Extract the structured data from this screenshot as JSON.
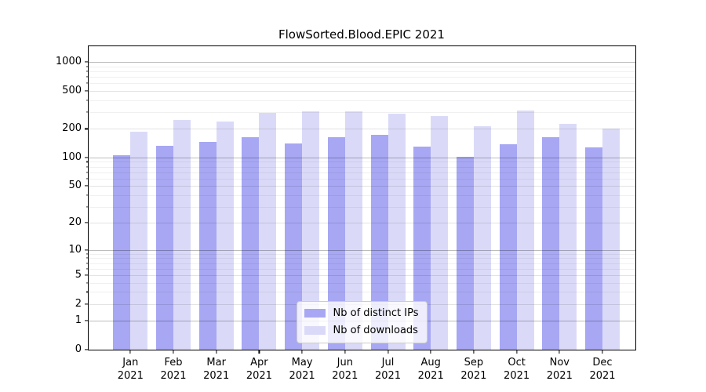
{
  "chart_data": {
    "type": "bar",
    "title": "FlowSorted.Blood.EPIC 2021",
    "xlabel": "",
    "ylabel": "",
    "year_label": "2021",
    "months": [
      "Jan",
      "Feb",
      "Mar",
      "Apr",
      "May",
      "Jun",
      "Jul",
      "Aug",
      "Sep",
      "Oct",
      "Nov",
      "Dec"
    ],
    "categories": [
      "Jan 2021",
      "Feb 2021",
      "Mar 2021",
      "Apr 2021",
      "May 2021",
      "Jun 2021",
      "Jul 2021",
      "Aug 2021",
      "Sep 2021",
      "Oct 2021",
      "Nov 2021",
      "Dec 2021"
    ],
    "series": [
      {
        "name": "Nb of distinct IPs",
        "color": "#a7a7f3",
        "values": [
          106,
          133,
          146,
          164,
          140,
          164,
          173,
          130,
          101,
          139,
          163,
          128
        ]
      },
      {
        "name": "Nb of downloads",
        "color": "#dadaf8",
        "values": [
          187,
          249,
          238,
          294,
          305,
          303,
          288,
          272,
          215,
          310,
          226,
          201
        ]
      }
    ],
    "y_scale": "log10(1+x)",
    "y_ticks": [
      0,
      1,
      2,
      5,
      10,
      20,
      50,
      100,
      200,
      500,
      1000
    ],
    "y_decade_ticks": [
      1,
      10,
      100,
      1000
    ],
    "y_minor_ticks": [
      3,
      4,
      6,
      7,
      8,
      9,
      30,
      40,
      60,
      70,
      80,
      90,
      300,
      400,
      600,
      700,
      800,
      900
    ],
    "ylim": [
      0,
      1460
    ],
    "grid": true,
    "legend_position": "lower center",
    "colors": {
      "bar_dark": "#a7a7f3",
      "bar_light": "#dadaf8",
      "axis": "#000000",
      "legend_border": "#cccccc"
    }
  }
}
